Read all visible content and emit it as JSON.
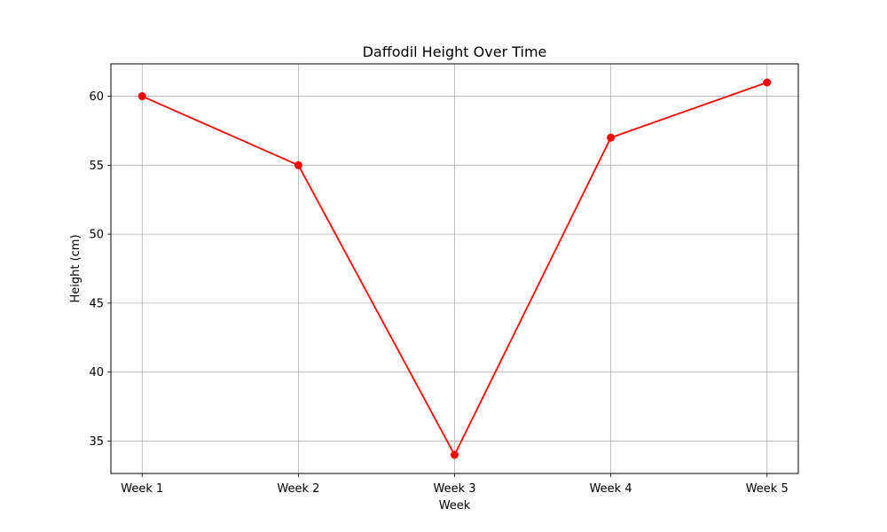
{
  "chart_data": {
    "type": "line",
    "title": "Daffodil Height Over Time",
    "xlabel": "Week",
    "ylabel": "Height (cm)",
    "categories": [
      "Week 1",
      "Week 2",
      "Week 3",
      "Week 4",
      "Week 5"
    ],
    "series": [
      {
        "values": [
          60,
          55,
          34,
          57,
          61
        ],
        "color": "#ff0000",
        "marker": "circle"
      }
    ],
    "ylim": [
      32.65,
      62.35
    ],
    "yticks": [
      35,
      40,
      45,
      50,
      55,
      60
    ],
    "grid": true,
    "legend": "none"
  }
}
